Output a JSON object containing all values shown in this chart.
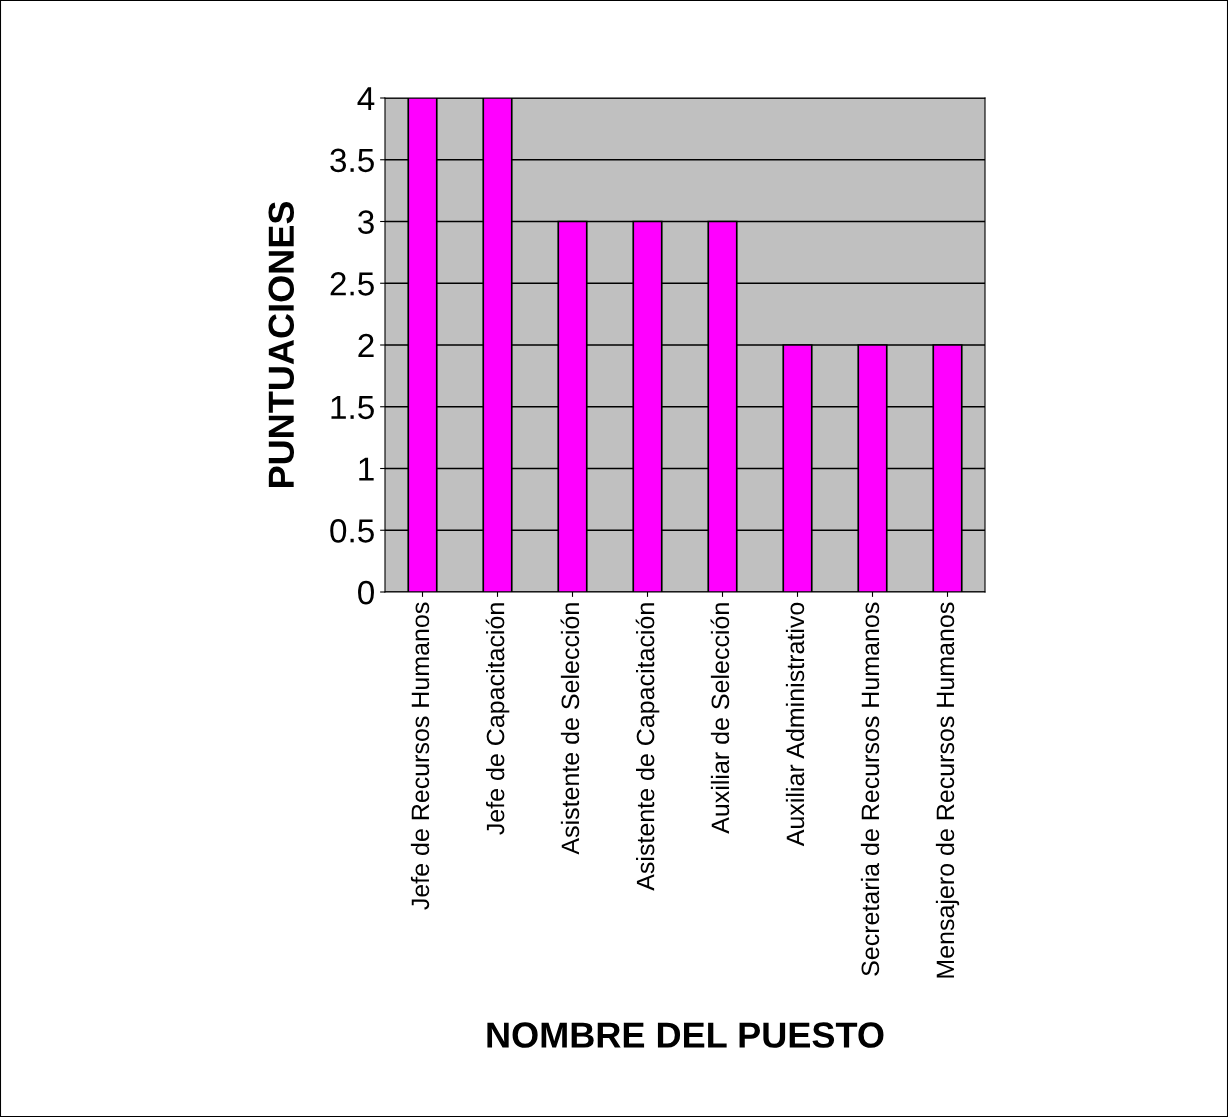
{
  "chart_data": {
    "type": "bar",
    "xlabel": "NOMBRE DEL PUESTO",
    "ylabel": "PUNTUACIONES",
    "categories": [
      "Jefe de Recursos Humanos",
      "Jefe de Capacitación",
      "Asistente de Selección",
      "Asistente de Capacitación",
      "Auxiliar de Selección",
      "Auxiliar Administrativo",
      "Secretaria de Recursos Humanos",
      "Mensajero de Recursos Humanos"
    ],
    "values": [
      4,
      4,
      3,
      3,
      3,
      2,
      2,
      2
    ],
    "color": "#ff00ff",
    "ylim": [
      0,
      4
    ],
    "yticks": [
      0,
      0.5,
      1,
      1.5,
      2,
      2.5,
      3,
      3.5,
      4
    ],
    "grid": "y",
    "legend": false
  }
}
